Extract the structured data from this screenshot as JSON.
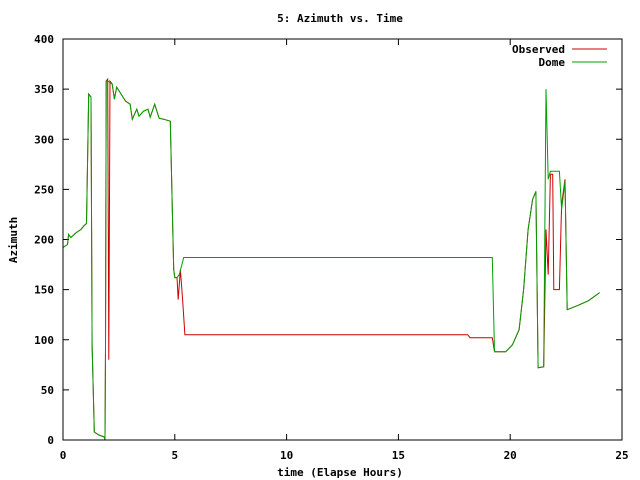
{
  "chart_data": {
    "type": "line",
    "title": "5: Azimuth vs. Time",
    "xlabel": "time (Elapse Hours)",
    "ylabel": "Azimuth",
    "xlim": [
      0,
      25
    ],
    "ylim": [
      0,
      400
    ],
    "xticks": [
      "0",
      "5",
      "10",
      "15",
      "20",
      "25"
    ],
    "yticks": [
      "0",
      "50",
      "100",
      "150",
      "200",
      "250",
      "300",
      "350",
      "400"
    ],
    "grid": false,
    "legend_position": "top-right",
    "series": [
      {
        "name": "Observed",
        "color": "#cc0000",
        "points": [
          [
            0.0,
            192
          ],
          [
            0.2,
            195
          ],
          [
            0.25,
            205
          ],
          [
            0.35,
            202
          ],
          [
            0.6,
            207
          ],
          [
            0.8,
            210
          ],
          [
            0.95,
            214
          ],
          [
            1.05,
            216
          ],
          [
            1.15,
            345
          ],
          [
            1.25,
            342
          ],
          [
            1.3,
            95
          ],
          [
            1.4,
            8
          ],
          [
            1.6,
            5
          ],
          [
            1.85,
            3
          ],
          [
            1.88,
            0
          ],
          [
            1.9,
            92
          ],
          [
            1.93,
            358
          ],
          [
            2.0,
            360
          ],
          [
            2.05,
            80
          ],
          [
            2.1,
            358
          ],
          [
            2.2,
            355
          ],
          [
            2.3,
            340
          ],
          [
            2.4,
            352
          ],
          [
            2.6,
            345
          ],
          [
            2.8,
            338
          ],
          [
            3.0,
            335
          ],
          [
            3.1,
            320
          ],
          [
            3.3,
            330
          ],
          [
            3.4,
            323
          ],
          [
            3.6,
            328
          ],
          [
            3.8,
            330
          ],
          [
            3.9,
            322
          ],
          [
            4.1,
            335
          ],
          [
            4.3,
            321
          ],
          [
            4.5,
            320
          ],
          [
            4.8,
            318
          ],
          [
            4.95,
            170
          ],
          [
            5.0,
            162
          ],
          [
            5.1,
            162
          ],
          [
            5.15,
            140
          ],
          [
            5.25,
            170
          ],
          [
            5.35,
            140
          ],
          [
            5.45,
            105
          ],
          [
            6.0,
            105
          ],
          [
            18.1,
            105
          ],
          [
            18.2,
            102
          ],
          [
            19.2,
            102
          ],
          [
            19.3,
            88
          ],
          [
            19.8,
            88
          ],
          [
            20.1,
            95
          ],
          [
            20.4,
            110
          ],
          [
            20.6,
            150
          ],
          [
            20.8,
            210
          ],
          [
            21.0,
            240
          ],
          [
            21.15,
            248
          ],
          [
            21.25,
            72
          ],
          [
            21.5,
            73
          ],
          [
            21.6,
            210
          ],
          [
            21.7,
            165
          ],
          [
            21.8,
            265
          ],
          [
            21.9,
            265
          ],
          [
            21.95,
            150
          ],
          [
            22.2,
            150
          ],
          [
            22.3,
            235
          ],
          [
            22.45,
            260
          ],
          [
            22.55,
            130
          ],
          [
            23.0,
            134
          ],
          [
            23.5,
            139
          ],
          [
            24.0,
            147
          ]
        ]
      },
      {
        "name": "Dome",
        "color": "#00a000",
        "points": [
          [
            0.0,
            192
          ],
          [
            0.2,
            195
          ],
          [
            0.25,
            205
          ],
          [
            0.35,
            202
          ],
          [
            0.6,
            207
          ],
          [
            0.8,
            210
          ],
          [
            0.95,
            214
          ],
          [
            1.05,
            216
          ],
          [
            1.15,
            345
          ],
          [
            1.25,
            342
          ],
          [
            1.3,
            95
          ],
          [
            1.4,
            8
          ],
          [
            1.6,
            5
          ],
          [
            1.85,
            3
          ],
          [
            1.88,
            0
          ],
          [
            1.9,
            92
          ],
          [
            1.93,
            358
          ],
          [
            2.0,
            358
          ],
          [
            2.2,
            355
          ],
          [
            2.3,
            340
          ],
          [
            2.4,
            352
          ],
          [
            2.6,
            345
          ],
          [
            2.8,
            338
          ],
          [
            3.0,
            335
          ],
          [
            3.1,
            320
          ],
          [
            3.3,
            330
          ],
          [
            3.4,
            323
          ],
          [
            3.6,
            328
          ],
          [
            3.8,
            330
          ],
          [
            3.9,
            322
          ],
          [
            4.1,
            335
          ],
          [
            4.3,
            321
          ],
          [
            4.5,
            320
          ],
          [
            4.8,
            318
          ],
          [
            4.95,
            170
          ],
          [
            5.0,
            162
          ],
          [
            5.1,
            162
          ],
          [
            5.2,
            165
          ],
          [
            5.4,
            182
          ],
          [
            19.2,
            182
          ],
          [
            19.3,
            88
          ],
          [
            19.8,
            88
          ],
          [
            20.1,
            95
          ],
          [
            20.4,
            110
          ],
          [
            20.6,
            150
          ],
          [
            20.8,
            210
          ],
          [
            21.0,
            240
          ],
          [
            21.15,
            248
          ],
          [
            21.25,
            72
          ],
          [
            21.5,
            73
          ],
          [
            21.6,
            350
          ],
          [
            21.7,
            260
          ],
          [
            21.8,
            268
          ],
          [
            22.2,
            268
          ],
          [
            22.3,
            230
          ],
          [
            22.45,
            258
          ],
          [
            22.55,
            130
          ],
          [
            23.0,
            134
          ],
          [
            23.5,
            139
          ],
          [
            24.0,
            147
          ]
        ]
      }
    ]
  }
}
